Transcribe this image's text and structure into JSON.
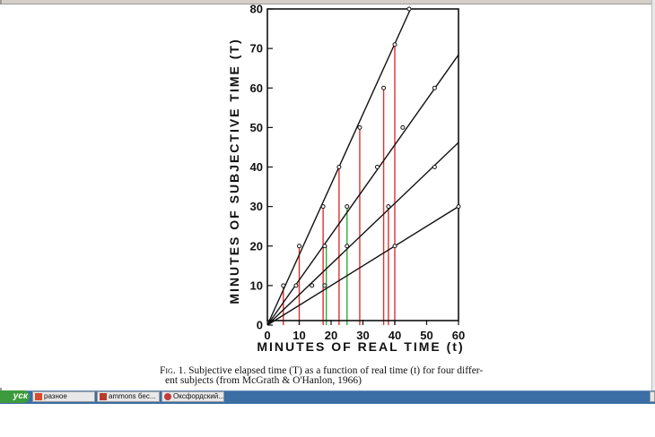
{
  "chart_data": {
    "type": "scatter",
    "xlabel": "MINUTES OF REAL TIME (t)",
    "ylabel": "MINUTES OF SUBJECTIVE TIME (T)",
    "xlim": [
      0,
      60
    ],
    "ylim": [
      0,
      80
    ],
    "xticks": [
      0,
      10,
      20,
      30,
      40,
      50,
      60
    ],
    "yticks": [
      0,
      10,
      20,
      30,
      40,
      50,
      60,
      70,
      80
    ],
    "grid": false,
    "series": [
      {
        "slope": 1.78,
        "x": [
          5,
          10,
          17.5,
          22.5,
          29,
          36.5,
          40,
          44.5
        ],
        "y": [
          10,
          20,
          30,
          40,
          50,
          60,
          71,
          80
        ]
      },
      {
        "slope": 1.14,
        "x": [
          9,
          18,
          25,
          34.5,
          42.5,
          52.5
        ],
        "y": [
          10,
          20,
          30,
          40,
          50,
          60
        ]
      },
      {
        "slope": 0.77,
        "x": [
          14,
          25,
          38,
          52.5
        ],
        "y": [
          10,
          20,
          30,
          40
        ]
      },
      {
        "slope": 0.5,
        "x": [
          18,
          40,
          60
        ],
        "y": [
          10,
          20,
          30
        ]
      }
    ],
    "drop_lines": [
      {
        "x": 5,
        "y": 10,
        "color": "#e03030"
      },
      {
        "x": 10,
        "y": 20,
        "color": "#e03030"
      },
      {
        "x": 17.5,
        "y": 30,
        "color": "#e03030"
      },
      {
        "x": 18.5,
        "y": 20,
        "color": "#2fae3a"
      },
      {
        "x": 22.5,
        "y": 40,
        "color": "#e03030"
      },
      {
        "x": 25,
        "y": 30,
        "color": "#2fae3a"
      },
      {
        "x": 29,
        "y": 50,
        "color": "#e03030"
      },
      {
        "x": 36.5,
        "y": 60,
        "color": "#e03030"
      },
      {
        "x": 38,
        "y": 30,
        "color": "#e03030"
      },
      {
        "x": 40,
        "y": 71,
        "color": "#e03030"
      }
    ]
  },
  "caption": {
    "fig_label": "Fig. 1.",
    "line1": "Subjective elapsed time (T) as a function of real time (t) for four differ-",
    "line2": "ent subjects (from McGrath & O'Hanlon, 1966)"
  },
  "taskbar": {
    "start_label": "уск",
    "tasks": [
      {
        "label": "разное",
        "icon": "folder-icon"
      },
      {
        "label": "ammons  бес...",
        "icon": "powerpoint-icon"
      },
      {
        "label": "Оксфордский...",
        "icon": "browser-icon"
      }
    ]
  },
  "colors": {
    "drop_red": "#e03030",
    "drop_green": "#2fae3a",
    "taskbar": "#3a6ea5",
    "start": "#3c9b3c"
  }
}
